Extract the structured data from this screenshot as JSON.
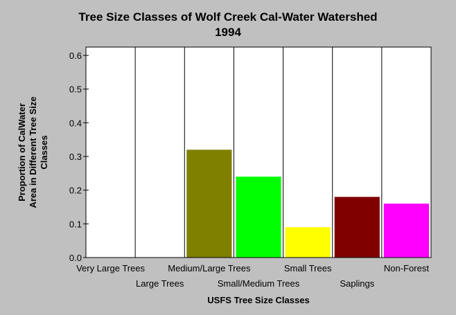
{
  "chart_data": {
    "type": "bar",
    "title": "Tree Size Classes of Wolf Creek Cal-Water Watershed",
    "subtitle": "1994",
    "xlabel": "USFS Tree Size Classes",
    "ylabel": [
      "Proportion of CalWater",
      "Area in Different Tree Size",
      "Classes"
    ],
    "categories": [
      "Very Large Trees",
      "Large Trees",
      "Medium/Large Trees",
      "Small/Medium Trees",
      "Small Trees",
      "Saplings",
      "Non-Forest"
    ],
    "values": [
      0,
      0,
      0.32,
      0.24,
      0.09,
      0.18,
      0.16
    ],
    "colors": [
      "#808080",
      "#808080",
      "#808000",
      "#00ff00",
      "#ffff00",
      "#800000",
      "#ff00ff"
    ],
    "ylim": [
      0,
      0.6
    ],
    "yticks": [
      "0.0",
      "0.1",
      "0.2",
      "0.3",
      "0.4",
      "0.5",
      "0.6"
    ],
    "grid": "vertical"
  }
}
